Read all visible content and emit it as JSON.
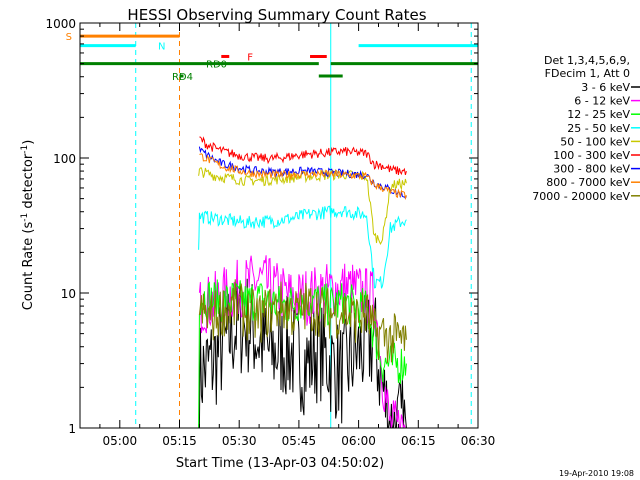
{
  "chart_data": {
    "type": "line",
    "title": "HESSI Observing Summary Count Rates",
    "xlabel": "Start Time (13-Apr-03 04:50:02)",
    "ylabel_main": "Count Rate (s",
    "ylabel_sup1": "-1",
    "ylabel_mid": " detector",
    "ylabel_sup2": "-1",
    "ylabel_end": ")",
    "y_scale": "log",
    "ylim": [
      1,
      1000
    ],
    "xlim_minutes": [
      0,
      100
    ],
    "x_ticks": [
      {
        "m": 10,
        "label": "05:00"
      },
      {
        "m": 25,
        "label": "05:15"
      },
      {
        "m": 40,
        "label": "05:30"
      },
      {
        "m": 55,
        "label": "05:45"
      },
      {
        "m": 70,
        "label": "06:00"
      },
      {
        "m": 85,
        "label": "06:15"
      },
      {
        "m": 100,
        "label": "06:30"
      }
    ],
    "y_ticks": [
      {
        "v": 1,
        "label": "1"
      },
      {
        "v": 10,
        "label": "10"
      },
      {
        "v": 100,
        "label": "100"
      },
      {
        "v": 1000,
        "label": "1000"
      }
    ],
    "legend_header": [
      "Det 1,3,4,5,6,9,",
      "FDecim 1, Att 0"
    ],
    "legend_placement": "right",
    "series": [
      {
        "name": "3 - 6 keV",
        "color": "#000000",
        "x": [
          30,
          33,
          36,
          39,
          42,
          45,
          48,
          51,
          54,
          57,
          60,
          63,
          66,
          69,
          72,
          74,
          76,
          78,
          80,
          82
        ],
        "values": [
          2.5,
          3.0,
          4.0,
          5.5,
          6.0,
          4.5,
          3.5,
          4.0,
          3.5,
          3.0,
          4.0,
          3.0,
          2.5,
          3.5,
          4.0,
          4.5,
          2.0,
          1.0,
          1.0,
          1.0
        ]
      },
      {
        "name": "6 - 12 keV",
        "color": "#ff00ff",
        "x": [
          30,
          33,
          36,
          39,
          42,
          45,
          48,
          51,
          54,
          57,
          60,
          63,
          66,
          69,
          72,
          74,
          76,
          78,
          80,
          82
        ],
        "values": [
          8.0,
          8.5,
          9.5,
          10.5,
          11.5,
          12.5,
          11.0,
          10.0,
          9.0,
          9.5,
          10.0,
          10.5,
          11.0,
          10.5,
          9.5,
          9.0,
          2.5,
          1.0,
          1.0,
          1.0
        ]
      },
      {
        "name": "12 - 25 keV",
        "color": "#00ff00",
        "x": [
          29.8,
          30,
          33,
          36,
          39,
          42,
          45,
          48,
          51,
          54,
          57,
          60,
          63,
          66,
          69,
          72,
          74,
          76,
          78,
          80,
          82
        ],
        "values": [
          1.0,
          9.5,
          9.0,
          8.5,
          9.0,
          8.5,
          9.0,
          8.5,
          8.0,
          8.5,
          9.0,
          8.5,
          8.0,
          8.5,
          8.0,
          7.5,
          5.0,
          3.0,
          3.0,
          3.0,
          3.0
        ]
      },
      {
        "name": "25 - 50 keV",
        "color": "#00ffff",
        "x": [
          29.8,
          30,
          33,
          36,
          39,
          42,
          45,
          48,
          51,
          54,
          57,
          60,
          63,
          66,
          69,
          72,
          74,
          76,
          78,
          80,
          82
        ],
        "values": [
          22,
          37,
          36,
          35,
          34,
          33,
          34,
          34,
          35,
          36,
          38,
          39,
          40,
          41,
          39,
          38,
          12,
          12,
          30,
          33,
          35
        ]
      },
      {
        "name": "50 - 100 keV",
        "color": "#c8c800",
        "x": [
          29.8,
          30,
          33,
          36,
          39,
          42,
          45,
          48,
          51,
          54,
          57,
          60,
          63,
          66,
          69,
          72,
          74,
          76,
          78,
          80,
          82
        ],
        "values": [
          70,
          80,
          75,
          72,
          70,
          68,
          68,
          69,
          70,
          72,
          73,
          74,
          75,
          76,
          74,
          73,
          26,
          25,
          62,
          64,
          65
        ]
      },
      {
        "name": "100 - 300 keV",
        "color": "#ff0000",
        "x": [
          30,
          32,
          34,
          36,
          39,
          42,
          45,
          48,
          51,
          54,
          57,
          60,
          63,
          66,
          69,
          72,
          74,
          76,
          78,
          80,
          82
        ],
        "values": [
          140,
          125,
          118,
          112,
          106,
          102,
          100,
          99,
          101,
          104,
          107,
          108,
          110,
          112,
          110,
          108,
          90,
          88,
          82,
          80,
          80
        ]
      },
      {
        "name": "300 - 800 keV",
        "color": "#0000ff",
        "x": [
          30,
          32,
          34,
          36,
          39,
          42,
          45,
          48,
          51,
          54,
          57,
          60,
          63,
          66,
          69,
          72,
          74,
          76,
          78,
          80,
          82
        ],
        "values": [
          115,
          105,
          96,
          90,
          86,
          82,
          80,
          79,
          79,
          80,
          80,
          79,
          78,
          77,
          76,
          75,
          65,
          62,
          58,
          55,
          52
        ]
      },
      {
        "name": "800 - 7000 keV",
        "color": "#ff8000",
        "x": [
          30,
          32,
          34,
          36,
          39,
          42,
          45,
          48,
          51,
          54,
          57,
          60,
          63,
          66,
          69,
          72,
          74,
          76,
          78,
          80,
          82
        ],
        "values": [
          105,
          98,
          92,
          86,
          82,
          78,
          76,
          75,
          75,
          76,
          76,
          76,
          76,
          75,
          74,
          73,
          63,
          60,
          56,
          54,
          53
        ]
      },
      {
        "name": "7000 - 20000 keV",
        "color": "#808000",
        "x": [
          30,
          33,
          36,
          39,
          42,
          45,
          48,
          51,
          54,
          57,
          60,
          63,
          66,
          69,
          72,
          74,
          76,
          78,
          80,
          82
        ],
        "values": [
          7.0,
          6.5,
          7.5,
          8.0,
          7.0,
          6.5,
          7.5,
          8.0,
          7.0,
          8.0,
          7.5,
          7.0,
          7.5,
          6.5,
          7.0,
          5.0,
          5.0,
          4.5,
          4.5,
          4.5
        ]
      }
    ],
    "flag_bars": [
      {
        "label": "S",
        "color": "#ff8000",
        "y_value": 800,
        "segments": [
          [
            0,
            25
          ]
        ]
      },
      {
        "label": "N",
        "color": "#00ffff",
        "y_value": 680,
        "segments": [
          [
            0,
            14
          ],
          [
            70,
            100
          ]
        ]
      },
      {
        "label": "F",
        "color": "#ff0000",
        "y_value": 565,
        "segments": [
          [
            35.5,
            37.5
          ],
          [
            57.8,
            62
          ]
        ]
      },
      {
        "label": "RD0",
        "color": "#008000",
        "y_value": 500,
        "segments": [
          [
            0,
            60
          ],
          [
            63,
            100
          ]
        ]
      },
      {
        "label": "RD4",
        "color": "#008000",
        "y_value": 405,
        "segments": [
          [
            25,
            26
          ],
          [
            60,
            66
          ]
        ]
      }
    ],
    "vertical_markers": [
      {
        "m": 14,
        "color": "#00ffff",
        "dashed": true
      },
      {
        "m": 25,
        "color": "#ff8000",
        "dashed": true
      },
      {
        "m": 63,
        "color": "#00ffff",
        "dashed": false
      },
      {
        "m": 98.3,
        "color": "#00ffff",
        "dashed": true
      }
    ]
  },
  "footer_date": "19-Apr-2010 19:08"
}
